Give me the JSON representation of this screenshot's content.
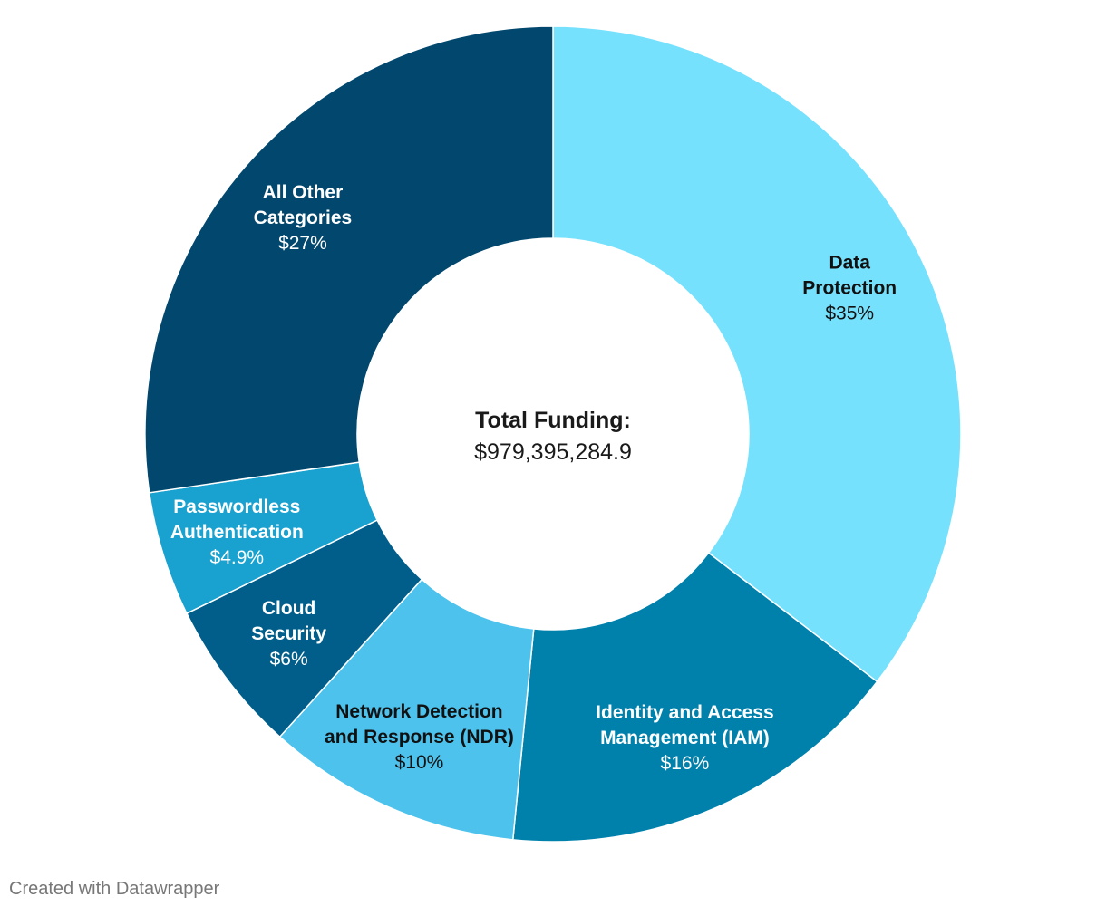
{
  "chart_data": {
    "type": "pie",
    "variant": "donut",
    "center_label": {
      "title": "Total Funding:",
      "value": "$979,395,284.9"
    },
    "slices": [
      {
        "label_lines": [
          "Data",
          "Protection"
        ],
        "value": 35,
        "display_value": "$35%",
        "color": "#76e1fd",
        "label_color": "#111111"
      },
      {
        "label_lines": [
          "Identity and Access",
          "Management (IAM)"
        ],
        "value": 16,
        "display_value": "$16%",
        "color": "#0081ac",
        "label_color": "#ffffff"
      },
      {
        "label_lines": [
          "Network Detection",
          "and Response (NDR)"
        ],
        "value": 10,
        "display_value": "$10%",
        "color": "#4cc2ec",
        "label_color": "#111111"
      },
      {
        "label_lines": [
          "Cloud",
          "Security"
        ],
        "value": 6,
        "display_value": "$6%",
        "color": "#015e8a",
        "label_color": "#ffffff"
      },
      {
        "label_lines": [
          "Passwordless",
          "Authentication"
        ],
        "value": 4.9,
        "display_value": "$4.9%",
        "color": "#19a1cf",
        "label_color": "#ffffff"
      },
      {
        "label_lines": [
          "All Other",
          "Categories"
        ],
        "value": 27,
        "display_value": "$27%",
        "color": "#02476d",
        "label_color": "#ffffff"
      }
    ]
  },
  "footer": {
    "credit": "Created with Datawrapper"
  }
}
